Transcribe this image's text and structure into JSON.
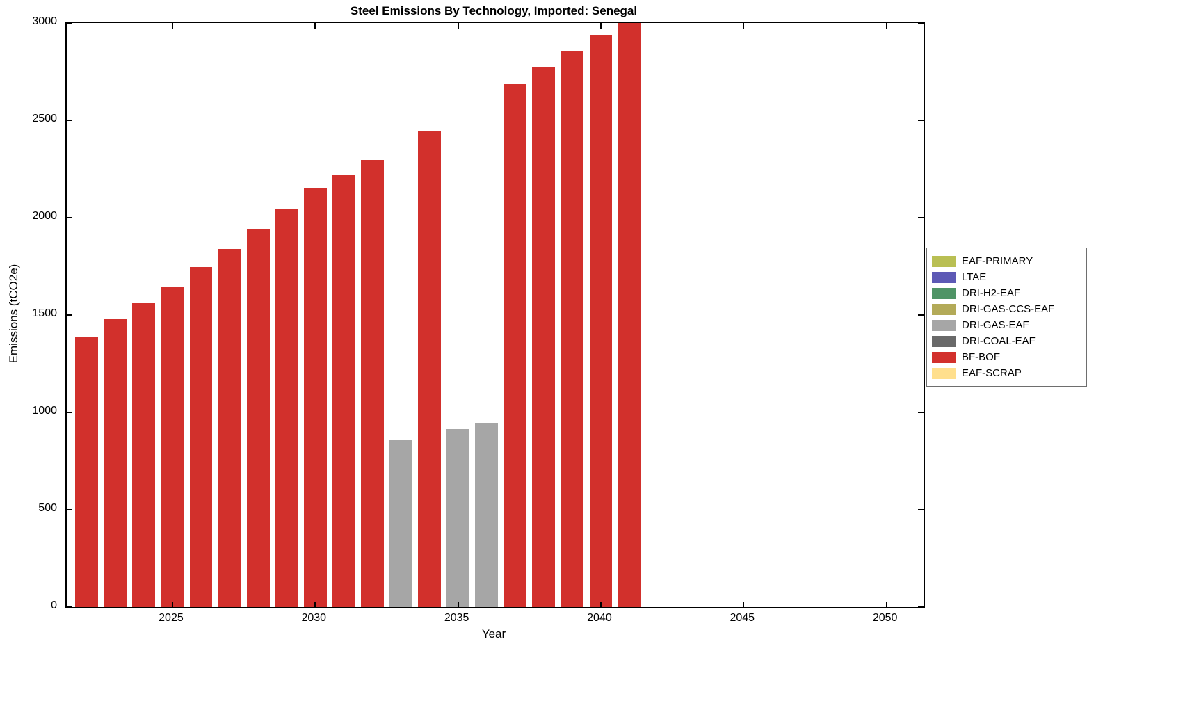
{
  "figure": {
    "title": "Steel Emissions By Technology, Imported: Senegal"
  },
  "chart_data": {
    "type": "bar",
    "title": "Steel Emissions By Technology, Imported: Senegal",
    "xlabel": "Year",
    "ylabel": "Emissions (tCO2e)",
    "xlim": [
      2021.3,
      2051.3
    ],
    "ylim": [
      0,
      3000
    ],
    "x_ticks": [
      2025,
      2030,
      2035,
      2040,
      2045,
      2050
    ],
    "y_ticks": [
      0,
      500,
      1000,
      1500,
      2000,
      2500,
      3000
    ],
    "grid": false,
    "legend_position": "right-outside",
    "bar_width_years": 0.8,
    "colors": {
      "BF-BOF": "#d2302c",
      "DRI-GAS-EAF": "#a6a6a6"
    },
    "bars": [
      {
        "year": 2022,
        "value": 1390,
        "tech": "BF-BOF"
      },
      {
        "year": 2023,
        "value": 1478,
        "tech": "BF-BOF"
      },
      {
        "year": 2024,
        "value": 1560,
        "tech": "BF-BOF"
      },
      {
        "year": 2025,
        "value": 1648,
        "tech": "BF-BOF"
      },
      {
        "year": 2026,
        "value": 1745,
        "tech": "BF-BOF"
      },
      {
        "year": 2027,
        "value": 1840,
        "tech": "BF-BOF"
      },
      {
        "year": 2028,
        "value": 1943,
        "tech": "BF-BOF"
      },
      {
        "year": 2029,
        "value": 2045,
        "tech": "BF-BOF"
      },
      {
        "year": 2030,
        "value": 2153,
        "tech": "BF-BOF"
      },
      {
        "year": 2031,
        "value": 2222,
        "tech": "BF-BOF"
      },
      {
        "year": 2032,
        "value": 2295,
        "tech": "BF-BOF"
      },
      {
        "year": 2033,
        "value": 858,
        "tech": "DRI-GAS-EAF"
      },
      {
        "year": 2034,
        "value": 2445,
        "tech": "BF-BOF"
      },
      {
        "year": 2035,
        "value": 913,
        "tech": "DRI-GAS-EAF"
      },
      {
        "year": 2036,
        "value": 945,
        "tech": "DRI-GAS-EAF"
      },
      {
        "year": 2037,
        "value": 2685,
        "tech": "BF-BOF"
      },
      {
        "year": 2038,
        "value": 2770,
        "tech": "BF-BOF"
      },
      {
        "year": 2039,
        "value": 2855,
        "tech": "BF-BOF"
      },
      {
        "year": 2040,
        "value": 2940,
        "tech": "BF-BOF"
      },
      {
        "year": 2041,
        "value": 3010,
        "tech": "BF-BOF"
      }
    ],
    "legend": [
      {
        "label": "EAF-PRIMARY",
        "color": "#b9bf53"
      },
      {
        "label": "LTAE",
        "color": "#5d59b5"
      },
      {
        "label": "DRI-H2-EAF",
        "color": "#4f9466"
      },
      {
        "label": "DRI-GAS-CCS-EAF",
        "color": "#b3aa58"
      },
      {
        "label": "DRI-GAS-EAF",
        "color": "#a6a6a6"
      },
      {
        "label": "DRI-COAL-EAF",
        "color": "#696969"
      },
      {
        "label": "BF-BOF",
        "color": "#d2302c"
      },
      {
        "label": "EAF-SCRAP",
        "color": "#ffdf8d"
      }
    ]
  }
}
